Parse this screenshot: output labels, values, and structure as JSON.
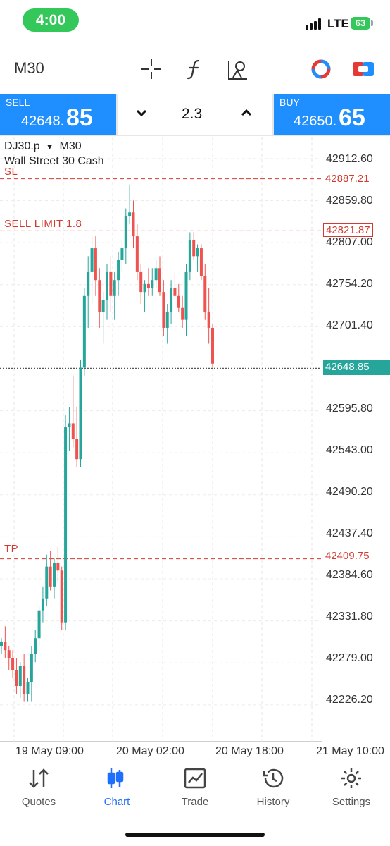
{
  "status_bar": {
    "time": "4:00",
    "network": "LTE",
    "battery": "63"
  },
  "toolbar": {
    "timeframe": "M30"
  },
  "trade": {
    "sell_label": "SELL",
    "sell_price_small": "42648.",
    "sell_price_big": "85",
    "buy_label": "BUY",
    "buy_price_small": "42650.",
    "buy_price_big": "65",
    "volume": "2.3",
    "down_icon": "chevron-down-icon",
    "up_icon": "chevron-up-icon"
  },
  "chart": {
    "symbol": "DJ30.p",
    "symbol_timeframe": "M30",
    "symbol_name": "Wall Street 30 Cash",
    "y_ticks": [
      "42912.60",
      "42859.80",
      "42807.00",
      "42754.20",
      "42701.40",
      "42595.80",
      "42543.00",
      "42490.20",
      "42437.40",
      "42384.60",
      "42331.80",
      "42279.00",
      "42226.20"
    ],
    "x_ticks": [
      "19 May 09:00",
      "20 May 02:00",
      "20 May 18:00",
      "21 May 10:00"
    ],
    "levels": {
      "sl_label": "SL",
      "sl_price": "42887.21",
      "limit_label": "SELL LIMIT 1.8",
      "limit_price": "42821.87",
      "tp_label": "TP",
      "tp_price": "42409.75",
      "current_price": "42648.85"
    },
    "colors": {
      "up": "#26a69a",
      "down": "#ef5350",
      "level": "#d23b32",
      "accent": "#1f8fff"
    }
  },
  "chart_data": {
    "type": "candlestick",
    "instrument": "DJ30.p",
    "timeframe": "M30",
    "ylim": [
      42180,
      42940
    ],
    "candles": [
      [
        42300,
        42310,
        42290,
        42305
      ],
      [
        42305,
        42325,
        42285,
        42295
      ],
      [
        42295,
        42300,
        42270,
        42285
      ],
      [
        42285,
        42295,
        42260,
        42270
      ],
      [
        42270,
        42285,
        42240,
        42250
      ],
      [
        42250,
        42280,
        42235,
        42275
      ],
      [
        42275,
        42290,
        42230,
        42240
      ],
      [
        42240,
        42260,
        42230,
        42255
      ],
      [
        42255,
        42300,
        42230,
        42290
      ],
      [
        42290,
        42320,
        42280,
        42310
      ],
      [
        42310,
        42350,
        42300,
        42345
      ],
      [
        42345,
        42375,
        42330,
        42360
      ],
      [
        42360,
        42415,
        42350,
        42400
      ],
      [
        42400,
        42420,
        42370,
        42375
      ],
      [
        42375,
        42410,
        42360,
        42405
      ],
      [
        42405,
        42425,
        42380,
        42395
      ],
      [
        42395,
        42400,
        42320,
        42330
      ],
      [
        42330,
        42590,
        42320,
        42575
      ],
      [
        42575,
        42600,
        42545,
        42580
      ],
      [
        42580,
        42640,
        42550,
        42560
      ],
      [
        42560,
        42600,
        42525,
        42535
      ],
      [
        42535,
        42660,
        42525,
        42650
      ],
      [
        42650,
        42750,
        42640,
        42740
      ],
      [
        42740,
        42790,
        42700,
        42770
      ],
      [
        42770,
        42815,
        42730,
        42800
      ],
      [
        42800,
        42815,
        42740,
        42760
      ],
      [
        42760,
        42775,
        42700,
        42720
      ],
      [
        42720,
        42745,
        42680,
        42735
      ],
      [
        42735,
        42780,
        42710,
        42770
      ],
      [
        42770,
        42790,
        42720,
        42740
      ],
      [
        42740,
        42770,
        42710,
        42760
      ],
      [
        42760,
        42795,
        42740,
        42785
      ],
      [
        42785,
        42810,
        42770,
        42800
      ],
      [
        42800,
        42850,
        42780,
        42840
      ],
      [
        42840,
        42880,
        42830,
        42845
      ],
      [
        42845,
        42860,
        42800,
        42815
      ],
      [
        42815,
        42830,
        42760,
        42770
      ],
      [
        42770,
        42780,
        42730,
        42745
      ],
      [
        42745,
        42760,
        42720,
        42755
      ],
      [
        42755,
        42775,
        42740,
        42750
      ],
      [
        42750,
        42775,
        42740,
        42760
      ],
      [
        42760,
        42785,
        42750,
        42775
      ],
      [
        42775,
        42790,
        42740,
        42745
      ],
      [
        42745,
        42760,
        42690,
        42700
      ],
      [
        42700,
        42730,
        42680,
        42720
      ],
      [
        42720,
        42760,
        42705,
        42750
      ],
      [
        42750,
        42770,
        42735,
        42740
      ],
      [
        42740,
        42755,
        42720,
        42725
      ],
      [
        42725,
        42740,
        42700,
        42710
      ],
      [
        42710,
        42780,
        42690,
        42770
      ],
      [
        42770,
        42820,
        42760,
        42810
      ],
      [
        42810,
        42820,
        42785,
        42790
      ],
      [
        42790,
        42805,
        42770,
        42800
      ],
      [
        42800,
        42805,
        42760,
        42765
      ],
      [
        42765,
        42780,
        42710,
        42720
      ],
      [
        42720,
        42750,
        42680,
        42700
      ],
      [
        42700,
        42705,
        42650,
        42655
      ]
    ]
  }
}
